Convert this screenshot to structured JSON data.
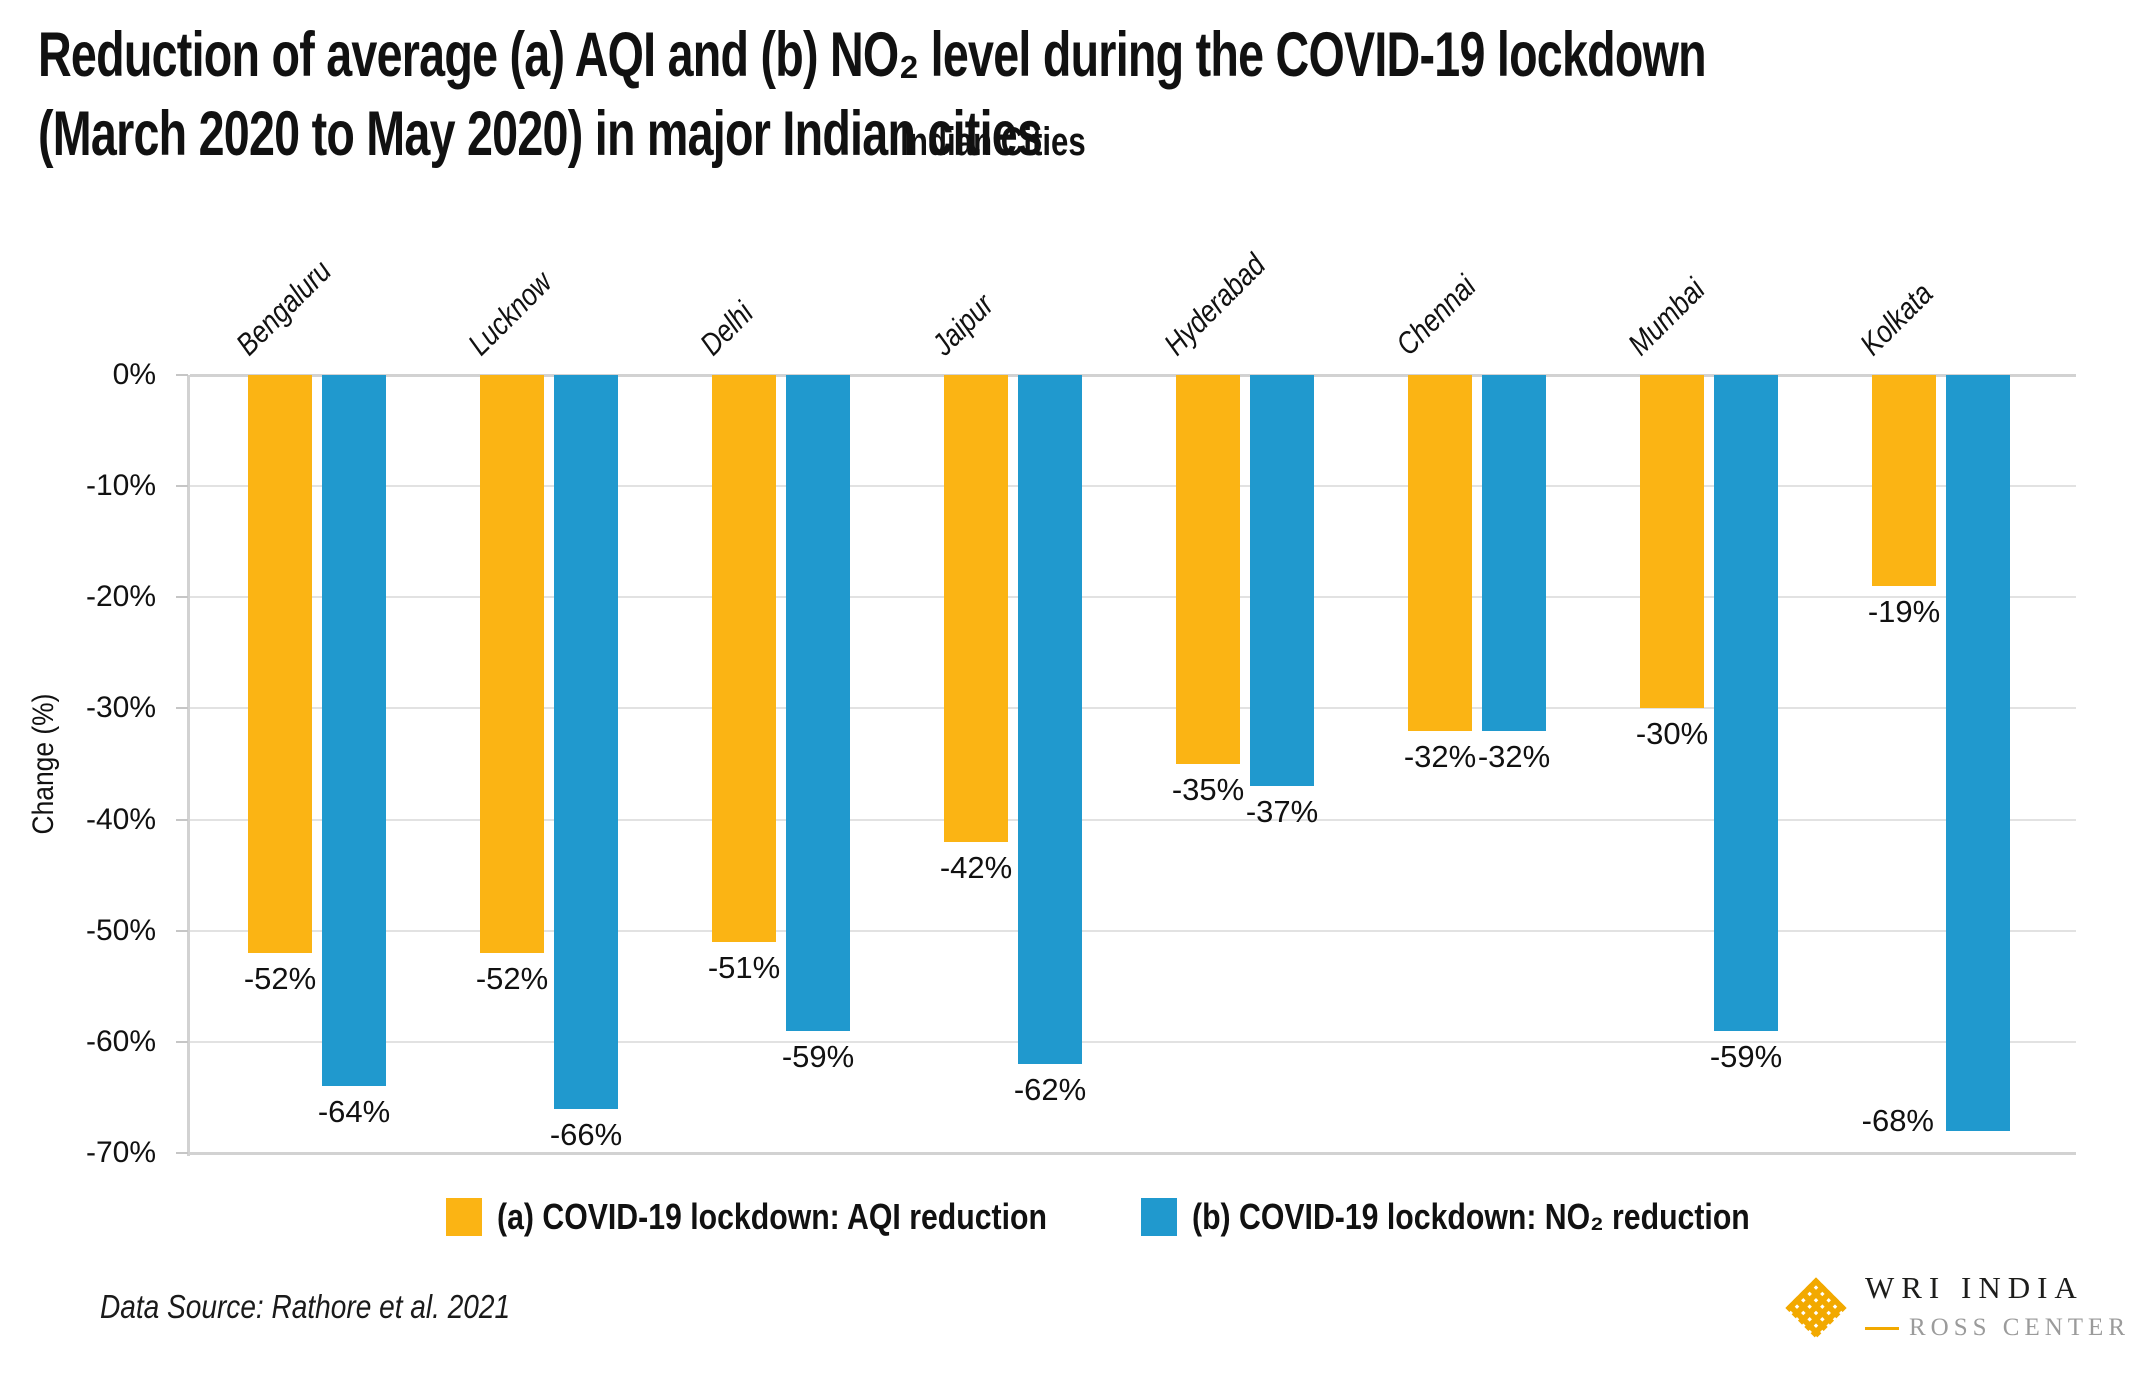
{
  "title": {
    "line1": "Reduction of average (a) AQI and (b) NO₂ level during the COVID-19 lockdown",
    "line2": "(March 2020 to May 2020) in major Indian cities"
  },
  "chart_data": {
    "type": "bar",
    "title": "Reduction of average (a) AQI and (b) NO₂ level during the COVID-19 lockdown (March 2020 to May 2020) in major Indian cities",
    "x_header": "Indian Cities",
    "ylabel": "Change (%)",
    "ylim": [
      -70,
      0
    ],
    "yticks": [
      "0%",
      "-10%",
      "-20%",
      "-30%",
      "-40%",
      "-50%",
      "-60%",
      "-70%"
    ],
    "grid": true,
    "legend_position": "bottom",
    "categories": [
      "Bengaluru",
      "Lucknow",
      "Delhi",
      "Jaipur",
      "Hyderabad",
      "Chennai",
      "Mumbai",
      "Kolkata"
    ],
    "series": [
      {
        "name": "(a) COVID-19 lockdown: AQI reduction",
        "color": "#FBB414",
        "values": [
          -52,
          -52,
          -51,
          -42,
          -35,
          -32,
          -30,
          -19
        ]
      },
      {
        "name": "(b) COVID-19 lockdown: NO₂ reduction",
        "color": "#2099CE",
        "values": [
          -64,
          -66,
          -59,
          -62,
          -37,
          -32,
          -59,
          -68
        ]
      }
    ],
    "value_label_format": "{v}%"
  },
  "colors": {
    "aqi_yellow": "#FBB414",
    "no2_blue": "#2099CE",
    "gridline": "#E2E2E2",
    "axis_border": "#D2D2D2",
    "logo_orange": "#F2A900",
    "logo_gray": "#9B9B9B",
    "text": "#111111"
  },
  "footer": {
    "source": "Data Source: Rathore et al. 2021"
  },
  "logo": {
    "name": "WRI INDIA",
    "sub": "ROSS CENTER"
  }
}
